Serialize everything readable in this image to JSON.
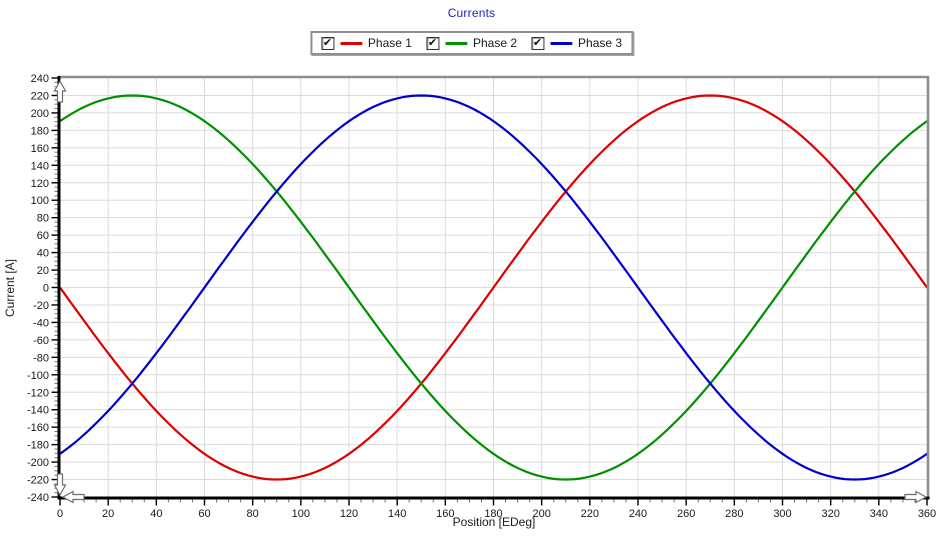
{
  "window": {
    "background": "#ffffff"
  },
  "chart_data": {
    "type": "line",
    "title": "Currents",
    "title_color": "#2121c8",
    "xlabel": "Position [EDeg]",
    "ylabel": "Current [A]",
    "xlim": [
      0,
      360
    ],
    "ylim": [
      -240,
      240
    ],
    "x_major_step": 20,
    "y_major_step": 20,
    "x_minor_step": 5,
    "y_minor_step": 5,
    "grid": true,
    "grid_color": "#dcdcdc",
    "axis_color": "#000000",
    "border_color": "#8e8e8e",
    "tick_label_color": "#1a1a1a",
    "legend_position": "top-center",
    "series": [
      {
        "name": "Phase 1",
        "color": "#dd0000",
        "checked": true,
        "model": "sine",
        "amplitude": 220,
        "phase_deg": 180,
        "sample_points_deg": [
          0,
          30,
          60,
          90,
          120,
          150,
          180,
          210,
          240,
          270,
          300,
          330,
          360
        ],
        "sample_values": [
          0,
          -110,
          -190.5,
          -220,
          -190.5,
          -110,
          0,
          110,
          190.5,
          220,
          190.5,
          110,
          0
        ]
      },
      {
        "name": "Phase 2",
        "color": "#009000",
        "checked": true,
        "model": "sine",
        "amplitude": 220,
        "phase_deg": 60,
        "sample_points_deg": [
          0,
          30,
          60,
          90,
          120,
          150,
          180,
          210,
          240,
          270,
          300,
          330,
          360
        ],
        "sample_values": [
          190.5,
          220,
          190.5,
          110,
          0,
          -110,
          -190.5,
          -220,
          -190.5,
          -110,
          0,
          110,
          190.5
        ]
      },
      {
        "name": "Phase 3",
        "color": "#0000cc",
        "checked": true,
        "model": "sine",
        "amplitude": 220,
        "phase_deg": -60,
        "sample_points_deg": [
          0,
          30,
          60,
          90,
          120,
          150,
          180,
          210,
          240,
          270,
          300,
          330,
          360
        ],
        "sample_values": [
          -190.5,
          -110,
          0,
          110,
          190.5,
          220,
          190.5,
          110,
          0,
          -110,
          -190.5,
          -220,
          -190.5
        ]
      }
    ],
    "checkmark_glyph": "✔",
    "axis_arrows": [
      "up",
      "down",
      "left",
      "right"
    ]
  }
}
